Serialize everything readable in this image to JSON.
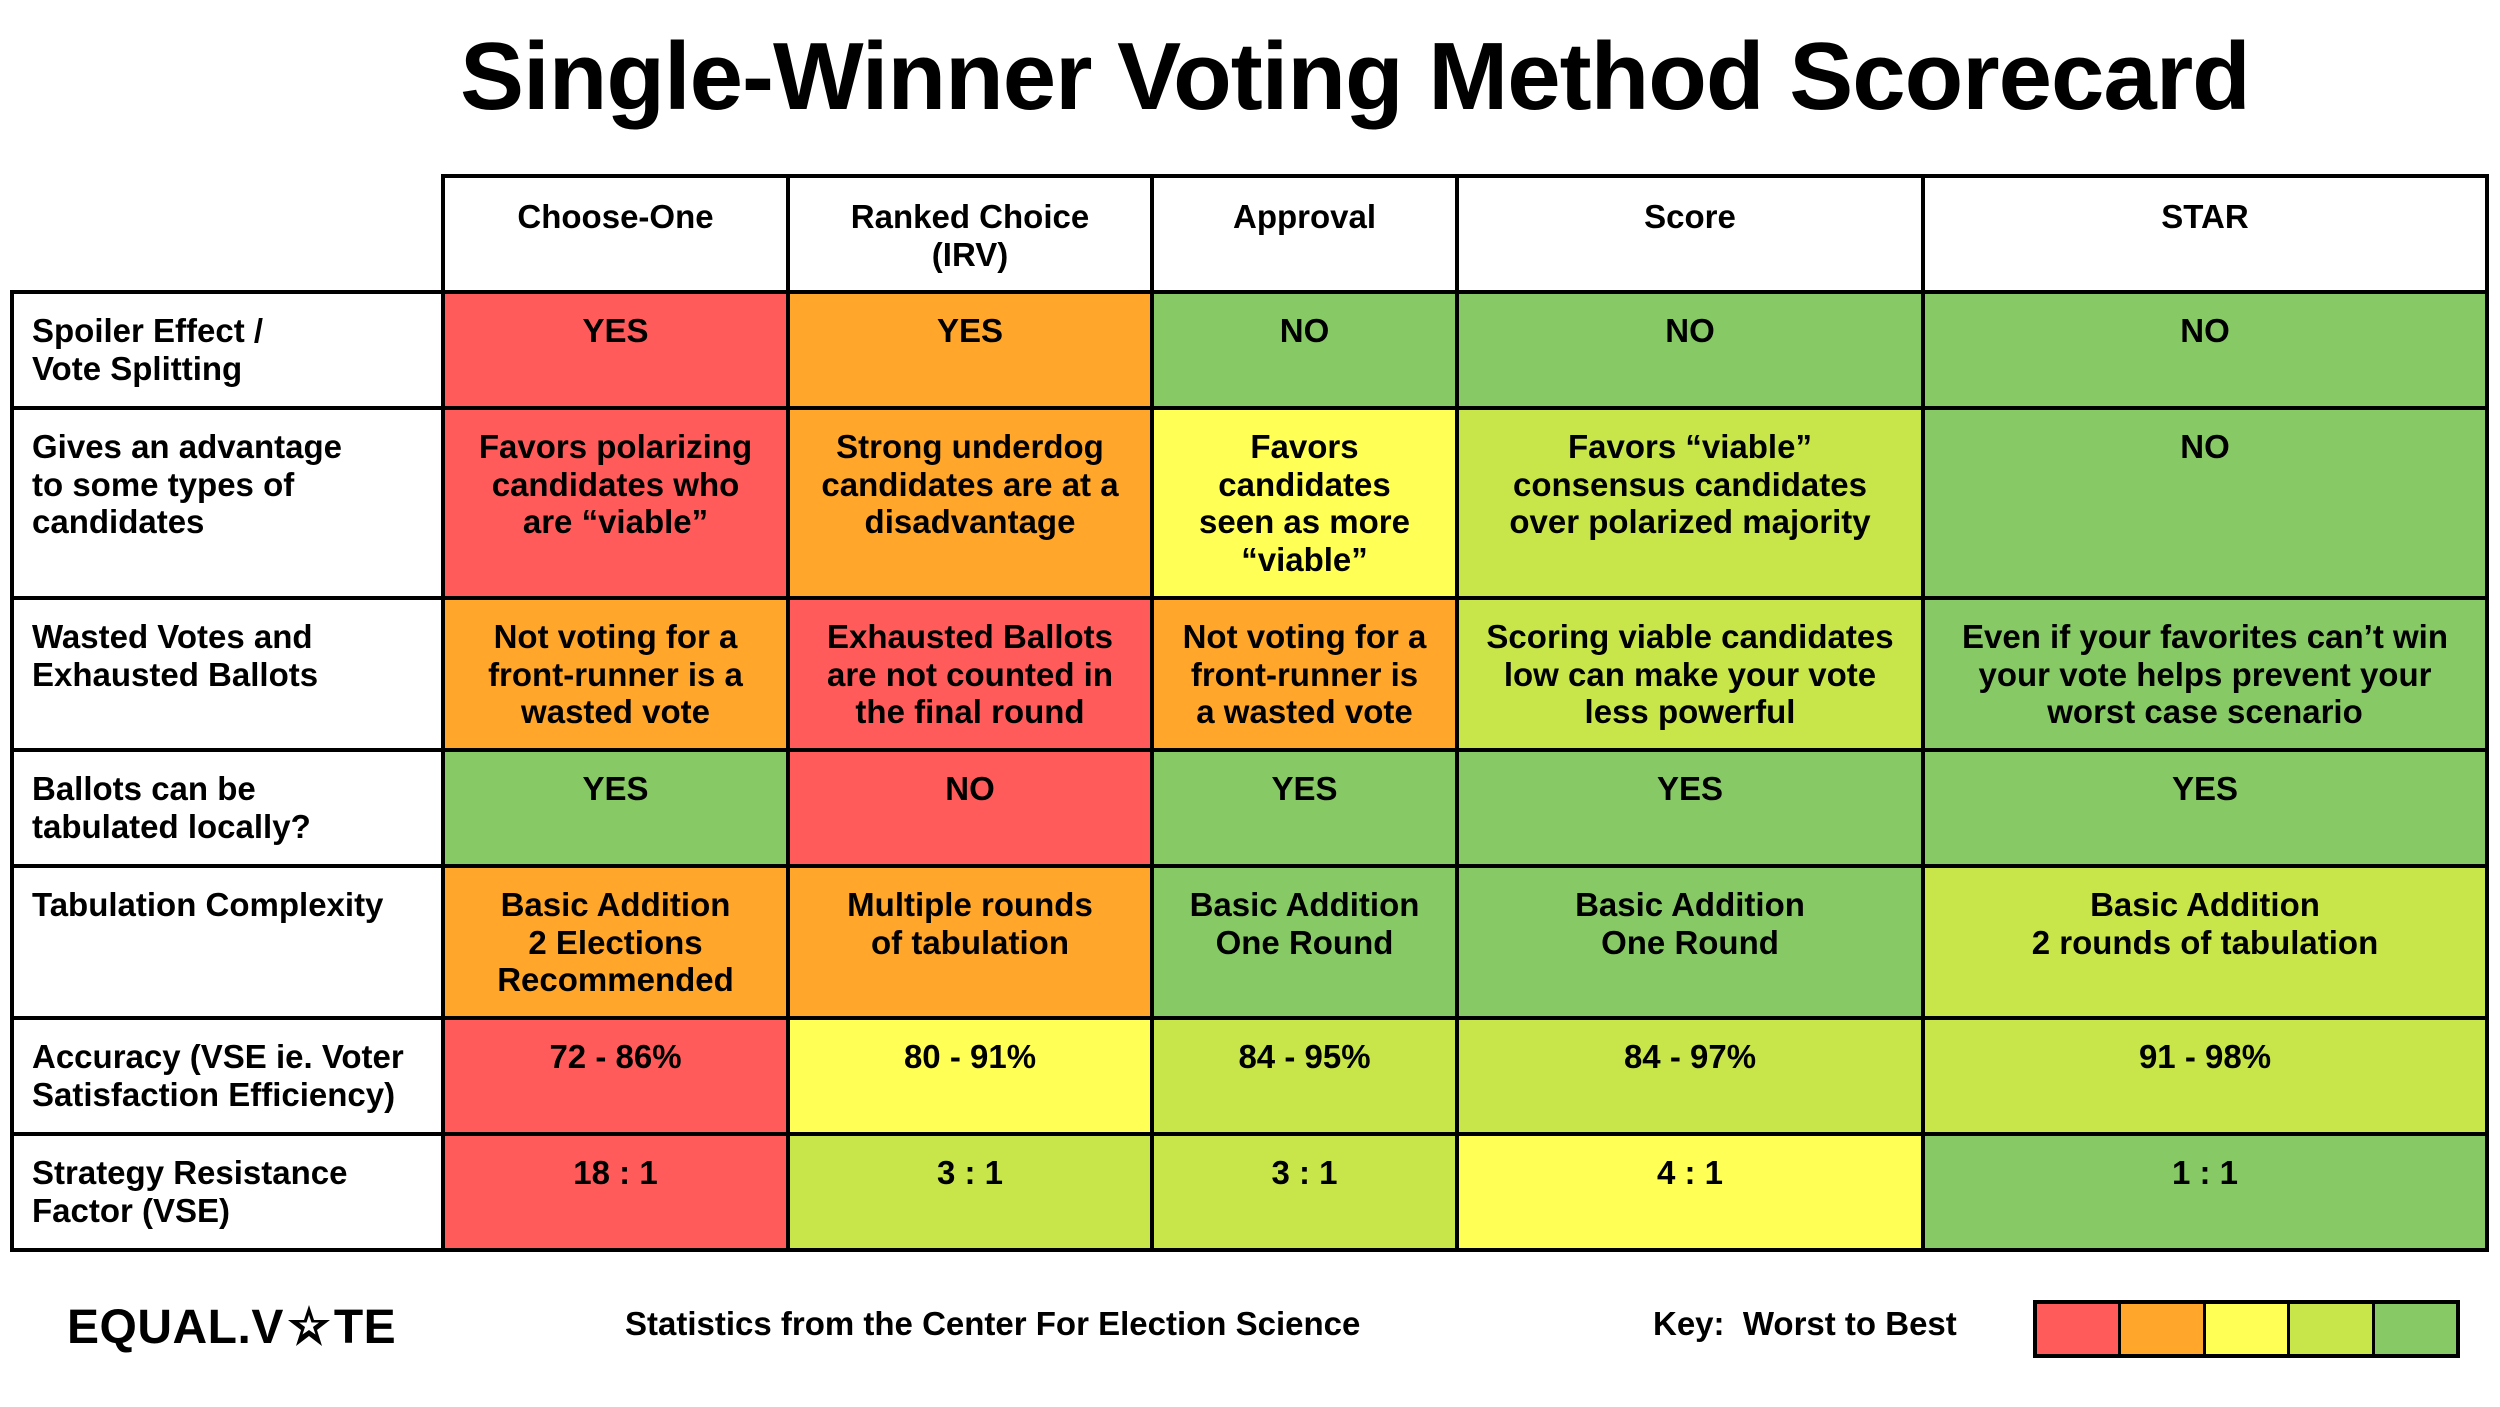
{
  "title": "Single-Winner Voting Method Scorecard",
  "colors": {
    "worst": "#ff5b5b",
    "bad": "#ffa62b",
    "medium": "#ffff55",
    "good": "#c8e64a",
    "best": "#87c965"
  },
  "columns": [
    "Choose-One",
    "Ranked Choice\n(IRV)",
    "Approval",
    "Score",
    "STAR"
  ],
  "rows": [
    {
      "label": "Spoiler Effect /\nVote Splitting",
      "cells": [
        {
          "text": "YES",
          "rating": "worst"
        },
        {
          "text": "YES",
          "rating": "bad"
        },
        {
          "text": "NO",
          "rating": "best"
        },
        {
          "text": "NO",
          "rating": "best"
        },
        {
          "text": "NO",
          "rating": "best"
        }
      ]
    },
    {
      "label": "Gives an advantage\nto some types of\ncandidates",
      "cells": [
        {
          "text": "Favors polarizing\ncandidates who\nare “viable”",
          "rating": "worst"
        },
        {
          "text": "Strong underdog\ncandidates are at a\ndisadvantage",
          "rating": "bad"
        },
        {
          "text": "Favors\ncandidates\nseen as more\n“viable”",
          "rating": "medium"
        },
        {
          "text": "Favors “viable”\nconsensus candidates\nover polarized majority",
          "rating": "good"
        },
        {
          "text": "NO",
          "rating": "best"
        }
      ]
    },
    {
      "label": "Wasted Votes and\nExhausted Ballots",
      "cells": [
        {
          "text": "Not voting for a\nfront-runner is a\nwasted vote",
          "rating": "bad"
        },
        {
          "text": "Exhausted Ballots\nare not counted in\nthe final round",
          "rating": "worst"
        },
        {
          "text": "Not voting for a\nfront-runner is\na wasted vote",
          "rating": "bad"
        },
        {
          "text": "Scoring viable candidates\nlow can make your vote\nless powerful",
          "rating": "good"
        },
        {
          "text": "Even if your favorites can’t win\nyour vote helps prevent your\nworst case scenario",
          "rating": "best"
        }
      ]
    },
    {
      "label": "Ballots can be\ntabulated locally?",
      "cells": [
        {
          "text": "YES",
          "rating": "best"
        },
        {
          "text": "NO",
          "rating": "worst"
        },
        {
          "text": "YES",
          "rating": "best"
        },
        {
          "text": "YES",
          "rating": "best"
        },
        {
          "text": "YES",
          "rating": "best"
        }
      ]
    },
    {
      "label": "Tabulation Complexity",
      "cells": [
        {
          "text": "Basic Addition\n2 Elections\nRecommended",
          "rating": "bad"
        },
        {
          "text": "Multiple rounds\nof tabulation",
          "rating": "bad"
        },
        {
          "text": "Basic Addition\nOne Round",
          "rating": "best"
        },
        {
          "text": "Basic Addition\nOne Round",
          "rating": "best"
        },
        {
          "text": "Basic Addition\n2 rounds of tabulation",
          "rating": "good"
        }
      ]
    },
    {
      "label": "Accuracy (VSE ie. Voter\nSatisfaction Efficiency)",
      "cells": [
        {
          "text": "72 - 86%",
          "rating": "worst"
        },
        {
          "text": "80 - 91%",
          "rating": "medium"
        },
        {
          "text": "84 - 95%",
          "rating": "good"
        },
        {
          "text": "84 - 97%",
          "rating": "good"
        },
        {
          "text": "91 - 98%",
          "rating": "good"
        }
      ]
    },
    {
      "label": "Strategy Resistance\nFactor (VSE)",
      "cells": [
        {
          "text": "18 : 1",
          "rating": "worst"
        },
        {
          "text": "3 : 1",
          "rating": "good"
        },
        {
          "text": "3 : 1",
          "rating": "good"
        },
        {
          "text": "4 : 1",
          "rating": "medium"
        },
        {
          "text": "1 : 1",
          "rating": "best"
        }
      ]
    }
  ],
  "footer": {
    "logo_left": "EQUAL.V",
    "logo_right": "TE",
    "logo_icon": "equal-vote-star-icon",
    "source": "Statistics from the Center For Election Science",
    "key_label": "Key:  Worst to Best",
    "key_order": [
      "worst",
      "bad",
      "medium",
      "good",
      "best"
    ]
  }
}
